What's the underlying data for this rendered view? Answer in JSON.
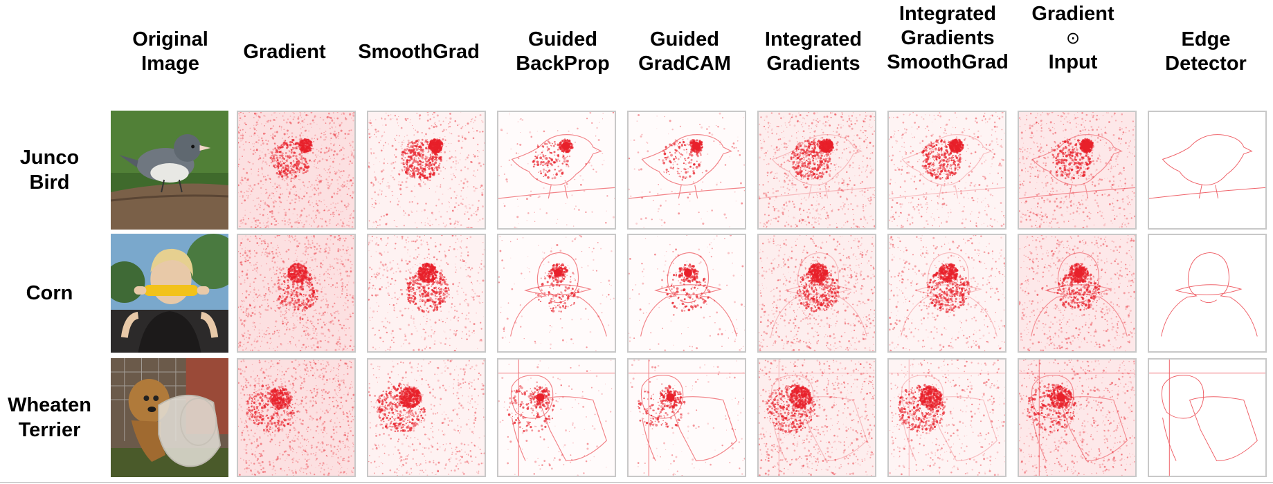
{
  "figure": {
    "columns": [
      {
        "lines": [
          "Original",
          "Image"
        ]
      },
      {
        "lines": [
          "Gradient"
        ]
      },
      {
        "lines": [
          "SmoothGrad"
        ]
      },
      {
        "lines": [
          "Guided",
          "BackProp"
        ]
      },
      {
        "lines": [
          "Guided",
          "GradCAM"
        ]
      },
      {
        "lines": [
          "Integrated",
          "Gradients"
        ]
      },
      {
        "lines": [
          "Integrated",
          "Gradients",
          "SmoothGrad"
        ]
      },
      {
        "lines": [
          "Gradient",
          "⊙",
          "Input"
        ]
      },
      {
        "lines": [
          "Edge",
          "Detector"
        ]
      }
    ],
    "rows": [
      {
        "lines": [
          "Junco",
          "Bird"
        ],
        "subject": "bird"
      },
      {
        "lines": [
          "Corn"
        ],
        "subject": "corn"
      },
      {
        "lines": [
          "Wheaten",
          "Terrier"
        ],
        "subject": "terrier"
      }
    ],
    "colors": {
      "saliency": "#e8202a",
      "cell_border": "#c8c8c8"
    }
  }
}
